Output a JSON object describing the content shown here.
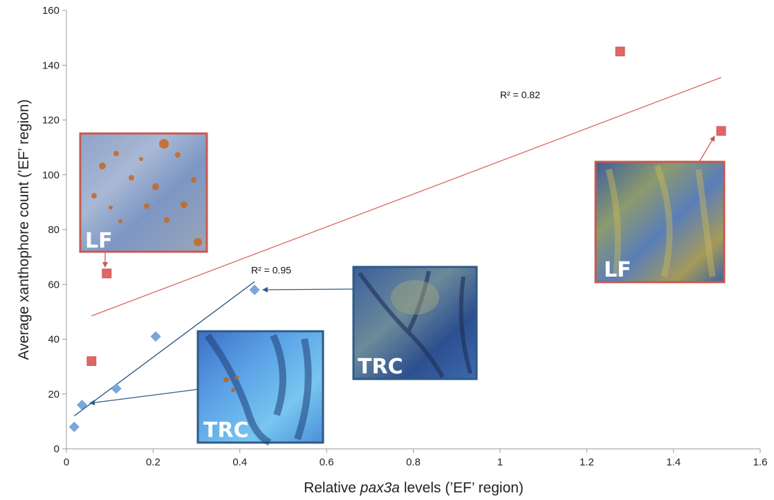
{
  "chart_data": {
    "type": "scatter",
    "xlabel_parts": [
      "Relative ",
      "pax3a",
      " levels (’EF’ region)"
    ],
    "ylabel": "Average xanthophore count (’EF’ region)",
    "xlim": [
      0,
      1.6
    ],
    "ylim": [
      0,
      160
    ],
    "x_ticks": [
      "0",
      "0.2",
      "0.4",
      "0.6",
      "0.8",
      "1",
      "1.2",
      "1.4",
      "1.6"
    ],
    "y_ticks": [
      "0",
      "20",
      "40",
      "60",
      "80",
      "100",
      "120",
      "140",
      "160"
    ],
    "grid": false,
    "series": [
      {
        "marker": "square",
        "color": "#e06666",
        "points": [
          {
            "x": 0.058,
            "y": 32
          },
          {
            "x": 0.093,
            "y": 64
          },
          {
            "x": 1.277,
            "y": 145
          },
          {
            "x": 1.51,
            "y": 116
          }
        ],
        "trendline": {
          "x": [
            0.058,
            1.51
          ],
          "y": [
            48.5,
            135.5
          ],
          "color": "#d9726a"
        },
        "r2_label": "R² = 0.82",
        "r2_at": {
          "x": 1.0,
          "y": 128
        }
      },
      {
        "marker": "diamond",
        "color": "#7ba7dc",
        "points": [
          {
            "x": 0.018,
            "y": 8
          },
          {
            "x": 0.036,
            "y": 16
          },
          {
            "x": 0.115,
            "y": 22
          },
          {
            "x": 0.206,
            "y": 41
          },
          {
            "x": 0.434,
            "y": 58
          }
        ],
        "trendline": {
          "x": [
            0.018,
            0.434
          ],
          "y": [
            12,
            61
          ],
          "color": "#2f5a85"
        },
        "r2_label": "R² = 0.95",
        "r2_at": {
          "x": 0.426,
          "y": 64
        }
      }
    ],
    "insets": [
      {
        "label": "LF",
        "theme": "lf-orange",
        "border": "#c8584f"
      },
      {
        "label": "TRC",
        "theme": "trc-dark",
        "border": "#2f5a85"
      },
      {
        "label": "TRC",
        "theme": "trc-light",
        "border": "#2f5a85"
      },
      {
        "label": "LF",
        "theme": "lf-yellow",
        "border": "#c8584f"
      }
    ]
  }
}
